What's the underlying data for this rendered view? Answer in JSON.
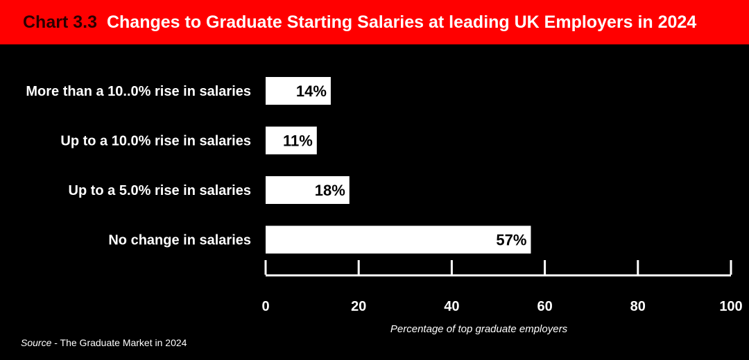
{
  "header": {
    "chart_label": "Chart 3.3",
    "title": "Changes to Graduate Starting Salaries at leading UK Employers in 2024"
  },
  "source": {
    "prefix": "Source",
    "text": " - The Graduate Market in 2024"
  },
  "colors": {
    "background": "#000000",
    "header": "#ff0000",
    "bar": "#ffffff",
    "text": "#ffffff"
  },
  "chart_data": {
    "type": "bar",
    "orientation": "horizontal",
    "categories": [
      "More than a 10..0% rise in salaries",
      "Up to a 10.0% rise in salaries",
      "Up to a 5.0% rise in salaries",
      "No change in salaries"
    ],
    "values": [
      14,
      11,
      18,
      57
    ],
    "data_labels": [
      "14%",
      "11%",
      "18%",
      "57%"
    ],
    "xlabel": "Percentage of top graduate employers",
    "ylabel": "",
    "xlim": [
      0,
      100
    ],
    "xticks": [
      0,
      20,
      40,
      60,
      80,
      100
    ],
    "grid": false,
    "legend": "none"
  }
}
